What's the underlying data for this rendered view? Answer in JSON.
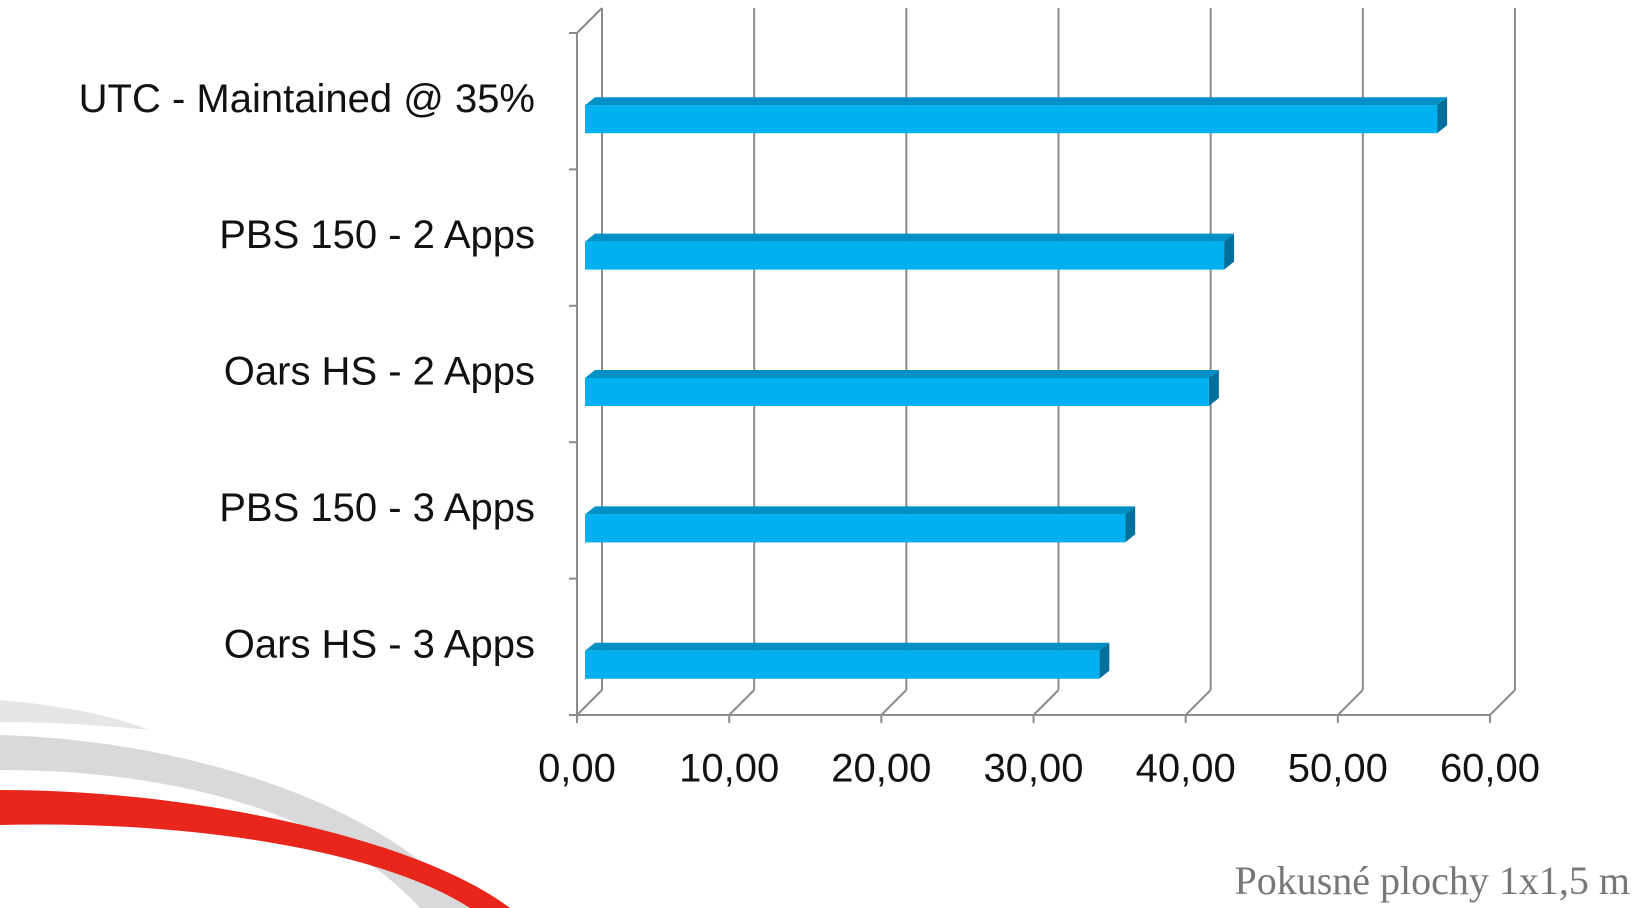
{
  "chart_data": {
    "type": "bar",
    "orientation": "horizontal",
    "categories": [
      "UTC - Maintained @ 35%",
      "PBS 150 - 2 Apps",
      "Oars HS - 2 Apps",
      "PBS 150 - 3 Apps",
      "Oars HS - 3 Apps"
    ],
    "values": [
      56,
      42,
      41,
      35.5,
      33.8
    ],
    "color": "#00b0f0",
    "xlim": [
      0,
      60
    ],
    "xticks": [
      {
        "value": 0,
        "label": "0,00"
      },
      {
        "value": 10,
        "label": "10,00"
      },
      {
        "value": 20,
        "label": "20,00"
      },
      {
        "value": 30,
        "label": "30,00"
      },
      {
        "value": 40,
        "label": "40,00"
      },
      {
        "value": 50,
        "label": "50,00"
      },
      {
        "value": 60,
        "label": "60,00"
      }
    ],
    "grid": true,
    "caption": "Pokusné plochy 1x1,5 m"
  }
}
